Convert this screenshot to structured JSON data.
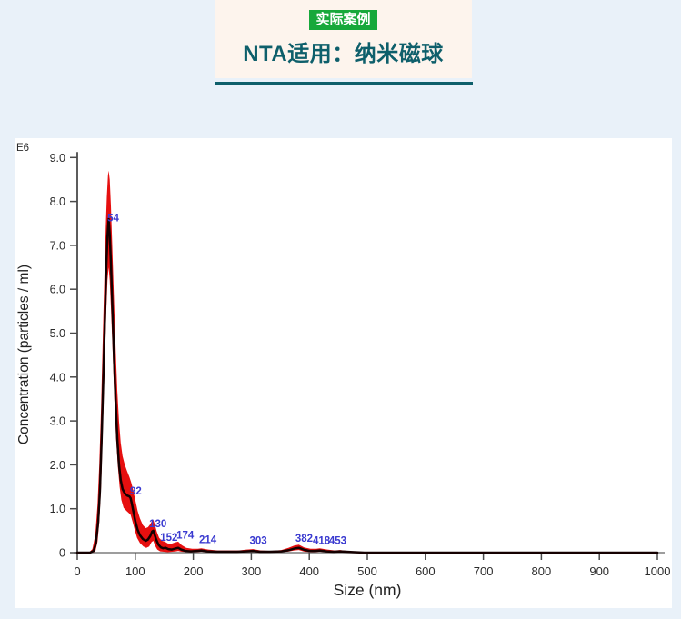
{
  "page": {
    "background_color": "#e9f1f9"
  },
  "header": {
    "badge": "实际案例",
    "badge_bg": "#17a83b",
    "badge_color": "#ffffff",
    "title": "NTA适用：纳米磁球",
    "title_color": "#0e5f6b",
    "underline_color": "#0e5f6b",
    "card_bg": "#fdf4ed"
  },
  "chart_data": {
    "type": "line",
    "title": "",
    "xlabel": "Size (nm)",
    "ylabel": "Concentration (particles / ml)",
    "y_unit_label": "E6",
    "xlim": [
      0,
      1000
    ],
    "ylim": [
      0,
      9.0
    ],
    "grid": false,
    "x_ticks": [
      0,
      100,
      200,
      300,
      400,
      500,
      600,
      700,
      800,
      900,
      1000
    ],
    "y_ticks": [
      {
        "v": 9,
        "label": "9.0"
      },
      {
        "v": 8,
        "label": "8.0"
      },
      {
        "v": 7,
        "label": "7.0"
      },
      {
        "v": 6,
        "label": "6.0"
      },
      {
        "v": 5,
        "label": "5.0"
      },
      {
        "v": 4,
        "label": "4.0"
      },
      {
        "v": 3,
        "label": "3.0"
      },
      {
        "v": 2,
        "label": "2.0"
      },
      {
        "v": 1,
        "label": "1.0"
      },
      {
        "v": 0,
        "label": "0"
      }
    ],
    "axis_color": "#4a4a4a",
    "baseline_color": "#7d7d7d",
    "tick_label_color": "#2b2b2b",
    "peak_label_color": "#3a3ad0",
    "series": [
      {
        "name": "mean-concentration",
        "color": "#150000",
        "points": [
          [
            0,
            0
          ],
          [
            22,
            0
          ],
          [
            28,
            0.04
          ],
          [
            32,
            0.2
          ],
          [
            36,
            0.7
          ],
          [
            39,
            1.4
          ],
          [
            42,
            2.6
          ],
          [
            45,
            4.0
          ],
          [
            48,
            5.5
          ],
          [
            50,
            6.5
          ],
          [
            52,
            7.2
          ],
          [
            54,
            7.6
          ],
          [
            56,
            7.25
          ],
          [
            58,
            6.6
          ],
          [
            60,
            5.8
          ],
          [
            63,
            4.6
          ],
          [
            66,
            3.5
          ],
          [
            69,
            2.6
          ],
          [
            72,
            2.0
          ],
          [
            75,
            1.65
          ],
          [
            78,
            1.45
          ],
          [
            82,
            1.35
          ],
          [
            86,
            1.3
          ],
          [
            90,
            1.28
          ],
          [
            92,
            1.24
          ],
          [
            94,
            1.12
          ],
          [
            97,
            0.92
          ],
          [
            100,
            0.72
          ],
          [
            104,
            0.52
          ],
          [
            108,
            0.4
          ],
          [
            113,
            0.31
          ],
          [
            118,
            0.27
          ],
          [
            122,
            0.3
          ],
          [
            126,
            0.38
          ],
          [
            129,
            0.48
          ],
          [
            131,
            0.5
          ],
          [
            133,
            0.42
          ],
          [
            136,
            0.3
          ],
          [
            140,
            0.18
          ],
          [
            144,
            0.12
          ],
          [
            148,
            0.1
          ],
          [
            152,
            0.11
          ],
          [
            157,
            0.08
          ],
          [
            163,
            0.07
          ],
          [
            168,
            0.09
          ],
          [
            174,
            0.11
          ],
          [
            179,
            0.07
          ],
          [
            186,
            0.04
          ],
          [
            196,
            0.03
          ],
          [
            206,
            0.04
          ],
          [
            214,
            0.05
          ],
          [
            224,
            0.03
          ],
          [
            240,
            0.02
          ],
          [
            258,
            0.02
          ],
          [
            275,
            0.02
          ],
          [
            290,
            0.03
          ],
          [
            303,
            0.04
          ],
          [
            315,
            0.02
          ],
          [
            332,
            0.02
          ],
          [
            352,
            0.03
          ],
          [
            366,
            0.06
          ],
          [
            376,
            0.1
          ],
          [
            382,
            0.11
          ],
          [
            390,
            0.07
          ],
          [
            400,
            0.04
          ],
          [
            410,
            0.04
          ],
          [
            418,
            0.05
          ],
          [
            430,
            0.03
          ],
          [
            442,
            0.02
          ],
          [
            453,
            0.03
          ],
          [
            464,
            0.02
          ],
          [
            478,
            0.01
          ],
          [
            495,
            0
          ],
          [
            1000,
            0
          ]
        ]
      },
      {
        "name": "std-band",
        "color": "#e60f0f",
        "upper": [
          [
            0,
            0
          ],
          [
            20,
            0
          ],
          [
            26,
            0.08
          ],
          [
            31,
            0.4
          ],
          [
            35,
            1.1
          ],
          [
            38,
            2.0
          ],
          [
            41,
            3.3
          ],
          [
            44,
            4.9
          ],
          [
            47,
            6.4
          ],
          [
            49,
            7.4
          ],
          [
            51,
            8.1
          ],
          [
            53,
            8.6
          ],
          [
            54,
            8.7
          ],
          [
            56,
            8.5
          ],
          [
            58,
            7.9
          ],
          [
            60,
            7.1
          ],
          [
            63,
            5.9
          ],
          [
            66,
            4.7
          ],
          [
            69,
            3.7
          ],
          [
            72,
            3.0
          ],
          [
            75,
            2.5
          ],
          [
            78,
            2.2
          ],
          [
            82,
            2.0
          ],
          [
            86,
            1.85
          ],
          [
            90,
            1.72
          ],
          [
            93,
            1.6
          ],
          [
            96,
            1.45
          ],
          [
            100,
            1.2
          ],
          [
            104,
            0.95
          ],
          [
            108,
            0.78
          ],
          [
            113,
            0.63
          ],
          [
            118,
            0.56
          ],
          [
            122,
            0.58
          ],
          [
            126,
            0.65
          ],
          [
            129,
            0.73
          ],
          [
            131,
            0.75
          ],
          [
            134,
            0.63
          ],
          [
            137,
            0.48
          ],
          [
            141,
            0.34
          ],
          [
            146,
            0.27
          ],
          [
            151,
            0.25
          ],
          [
            156,
            0.21
          ],
          [
            162,
            0.2
          ],
          [
            168,
            0.23
          ],
          [
            174,
            0.25
          ],
          [
            180,
            0.17
          ],
          [
            188,
            0.11
          ],
          [
            198,
            0.09
          ],
          [
            208,
            0.09
          ],
          [
            214,
            0.1
          ],
          [
            226,
            0.07
          ],
          [
            242,
            0.05
          ],
          [
            260,
            0.05
          ],
          [
            278,
            0.05
          ],
          [
            292,
            0.07
          ],
          [
            303,
            0.08
          ],
          [
            316,
            0.05
          ],
          [
            334,
            0.04
          ],
          [
            352,
            0.06
          ],
          [
            364,
            0.11
          ],
          [
            374,
            0.16
          ],
          [
            382,
            0.18
          ],
          [
            391,
            0.12
          ],
          [
            402,
            0.09
          ],
          [
            412,
            0.09
          ],
          [
            418,
            0.1
          ],
          [
            431,
            0.07
          ],
          [
            444,
            0.05
          ],
          [
            453,
            0.06
          ],
          [
            465,
            0.04
          ],
          [
            480,
            0.02
          ],
          [
            497,
            0.01
          ],
          [
            510,
            0
          ],
          [
            1000,
            0
          ]
        ],
        "lower": [
          [
            0,
            0
          ],
          [
            25,
            0
          ],
          [
            31,
            0.02
          ],
          [
            35,
            0.25
          ],
          [
            38,
            0.7
          ],
          [
            41,
            1.5
          ],
          [
            44,
            2.8
          ],
          [
            47,
            4.2
          ],
          [
            50,
            5.5
          ],
          [
            52,
            6.2
          ],
          [
            54,
            6.5
          ],
          [
            56,
            6.2
          ],
          [
            58,
            5.6
          ],
          [
            61,
            4.6
          ],
          [
            64,
            3.5
          ],
          [
            67,
            2.6
          ],
          [
            70,
            1.95
          ],
          [
            73,
            1.5
          ],
          [
            76,
            1.2
          ],
          [
            80,
            1.02
          ],
          [
            85,
            0.95
          ],
          [
            89,
            0.9
          ],
          [
            92,
            0.86
          ],
          [
            95,
            0.72
          ],
          [
            99,
            0.52
          ],
          [
            103,
            0.34
          ],
          [
            108,
            0.22
          ],
          [
            114,
            0.14
          ],
          [
            119,
            0.11
          ],
          [
            124,
            0.14
          ],
          [
            128,
            0.24
          ],
          [
            131,
            0.27
          ],
          [
            134,
            0.16
          ],
          [
            138,
            0.07
          ],
          [
            143,
            0.03
          ],
          [
            149,
            0.02
          ],
          [
            156,
            0.01
          ],
          [
            164,
            0.02
          ],
          [
            170,
            0.03
          ],
          [
            174,
            0.04
          ],
          [
            180,
            0.02
          ],
          [
            190,
            0.01
          ],
          [
            204,
            0.01
          ],
          [
            214,
            0.02
          ],
          [
            228,
            0.01
          ],
          [
            250,
            0.01
          ],
          [
            288,
            0.01
          ],
          [
            300,
            0.02
          ],
          [
            312,
            0.01
          ],
          [
            340,
            0.01
          ],
          [
            362,
            0.02
          ],
          [
            374,
            0.05
          ],
          [
            382,
            0.06
          ],
          [
            392,
            0.02
          ],
          [
            405,
            0.01
          ],
          [
            418,
            0.02
          ],
          [
            434,
            0.01
          ],
          [
            450,
            0.01
          ],
          [
            468,
            0
          ],
          [
            1000,
            0
          ]
        ]
      }
    ],
    "peak_labels": [
      {
        "size": "54",
        "x": 62,
        "y": 7.55
      },
      {
        "size": "92",
        "x": 101,
        "y": 1.32
      },
      {
        "size": "130",
        "x": 139,
        "y": 0.58
      },
      {
        "size": "152",
        "x": 158,
        "y": 0.27
      },
      {
        "size": "174",
        "x": 186,
        "y": 0.32
      },
      {
        "size": "214",
        "x": 225,
        "y": 0.22
      },
      {
        "size": "303",
        "x": 312,
        "y": 0.2
      },
      {
        "size": "382",
        "x": 391,
        "y": 0.25
      },
      {
        "size": "418",
        "x": 421,
        "y": 0.2
      },
      {
        "size": "453",
        "x": 449,
        "y": 0.2
      }
    ]
  }
}
